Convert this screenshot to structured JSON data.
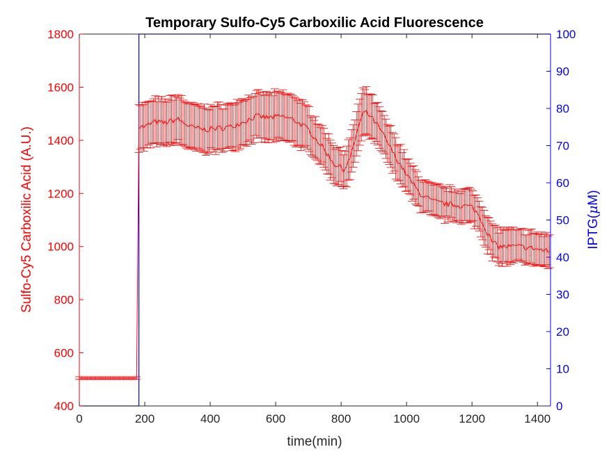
{
  "chart_data": {
    "type": "line",
    "title": "Temporary Sulfo-Cy5 Carboxilic Acid Fluorescence",
    "xlabel": "time(min)",
    "ylabel_left": "Sulfo-Cy5 Carboxilic Acid (A.U.)",
    "ylabel_right_prefix": "IPTG(",
    "ylabel_right_mu": "μ",
    "ylabel_right_suffix": "M)",
    "xlim": [
      0,
      1440
    ],
    "ylim_left": [
      400,
      1800
    ],
    "ylim_right": [
      0,
      100
    ],
    "x_ticks": [
      0,
      200,
      400,
      600,
      800,
      1000,
      1200,
      1400
    ],
    "x_tick_labels": [
      "0",
      "200",
      "400",
      "600",
      "800",
      "1000",
      "1200",
      "1400"
    ],
    "y_left_ticks": [
      400,
      600,
      800,
      1000,
      1200,
      1400,
      1600,
      1800
    ],
    "y_left_tick_labels": [
      "400",
      "600",
      "800",
      "1000",
      "1200",
      "1400",
      "1600",
      "1800"
    ],
    "y_right_ticks": [
      0,
      10,
      20,
      30,
      40,
      50,
      60,
      70,
      80,
      90,
      100
    ],
    "y_right_tick_labels": [
      "0",
      "10",
      "20",
      "30",
      "40",
      "50",
      "60",
      "70",
      "80",
      "90",
      "100"
    ],
    "grid": false,
    "legend": "none",
    "colors": {
      "fluorescence": "#ff0000",
      "iptg": "#0000ff",
      "axis": "#262626"
    },
    "fluorescence_knots": {
      "x": [
        0,
        178,
        182,
        200,
        230,
        260,
        300,
        340,
        380,
        420,
        460,
        500,
        540,
        580,
        620,
        660,
        700,
        740,
        780,
        810,
        830,
        850,
        870,
        890,
        920,
        960,
        1000,
        1040,
        1080,
        1120,
        1160,
        1200,
        1220,
        1240,
        1260,
        1280,
        1300,
        1340,
        1380,
        1420,
        1440
      ],
      "mean": [
        505,
        505,
        1455,
        1450,
        1470,
        1465,
        1480,
        1450,
        1440,
        1445,
        1450,
        1470,
        1490,
        1485,
        1490,
        1475,
        1440,
        1380,
        1310,
        1290,
        1340,
        1440,
        1510,
        1490,
        1440,
        1350,
        1270,
        1200,
        1170,
        1160,
        1155,
        1150,
        1120,
        1070,
        1020,
        1000,
        1000,
        1000,
        995,
        985,
        980
      ],
      "err": [
        5,
        5,
        85,
        85,
        85,
        85,
        90,
        85,
        85,
        85,
        85,
        85,
        85,
        90,
        90,
        90,
        80,
        70,
        70,
        70,
        75,
        85,
        85,
        80,
        75,
        75,
        65,
        60,
        60,
        60,
        60,
        60,
        60,
        65,
        65,
        65,
        65,
        60,
        60,
        60,
        60
      ]
    },
    "iptg": {
      "x": [
        0,
        182,
        182,
        1440
      ],
      "y": [
        0,
        0,
        100,
        100
      ]
    }
  }
}
